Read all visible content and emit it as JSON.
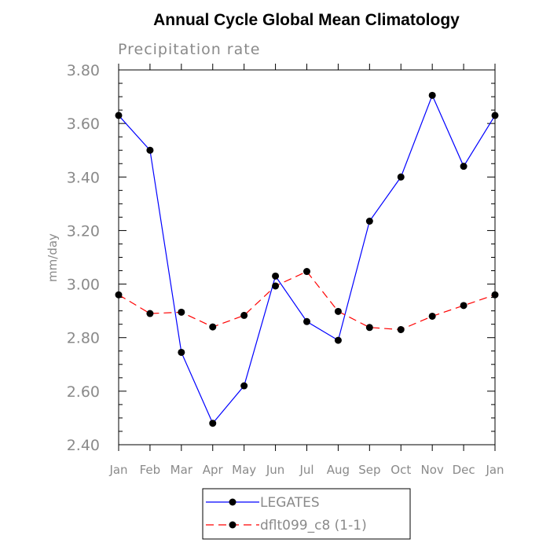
{
  "chart_data": {
    "type": "line",
    "title": "Annual Cycle Global Mean Climatology",
    "subtitle": "Precipitation rate",
    "ylabel": "mm/day",
    "xlabel": "",
    "ylim": [
      2.4,
      3.8
    ],
    "yticks": [
      2.4,
      2.6,
      2.8,
      3.0,
      3.2,
      3.4,
      3.6,
      3.8
    ],
    "ytick_labels": [
      "2.40",
      "2.60",
      "2.80",
      "3.00",
      "3.20",
      "3.40",
      "3.60",
      "3.80"
    ],
    "categories": [
      "Jan",
      "Feb",
      "Mar",
      "Apr",
      "May",
      "Jun",
      "Jul",
      "Aug",
      "Sep",
      "Oct",
      "Nov",
      "Dec",
      "Jan"
    ],
    "grid": false,
    "legend_position": "bottom",
    "series": [
      {
        "name": "LEGATES",
        "color": "#0000ff",
        "dash": "solid",
        "marker": "filled-circle",
        "values": [
          3.63,
          3.5,
          2.745,
          2.48,
          2.62,
          3.03,
          2.86,
          2.79,
          3.235,
          3.4,
          3.705,
          3.44,
          3.63
        ]
      },
      {
        "name": "dflt099_c8 (1-1)",
        "color": "#ff0000",
        "dash": "dashed",
        "marker": "filled-circle",
        "values": [
          2.96,
          2.89,
          2.895,
          2.84,
          2.883,
          2.993,
          3.047,
          2.898,
          2.838,
          2.83,
          2.88,
          2.92,
          2.96
        ]
      }
    ]
  }
}
